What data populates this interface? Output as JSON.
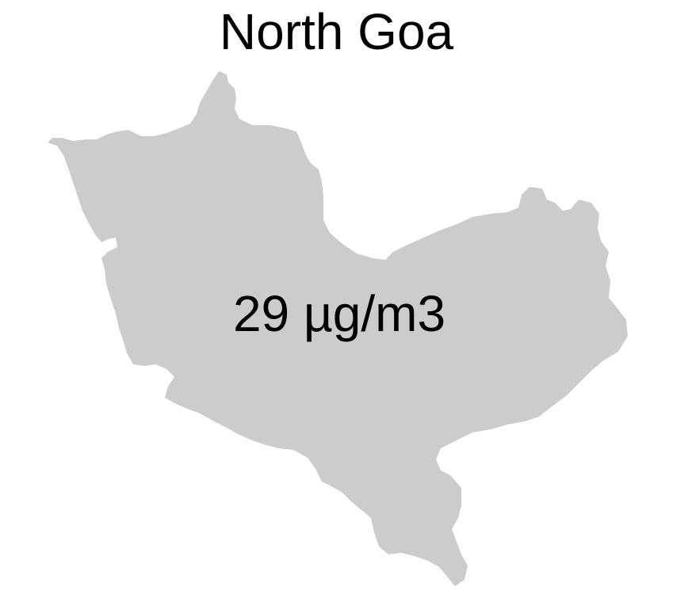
{
  "map": {
    "title": "North Goa",
    "region_name": "North Goa",
    "value_label": "29 µg/m3",
    "value": 29,
    "unit": "µg/m3",
    "fill_color": "#cccccc",
    "background_color": "#ffffff",
    "text_color": "#000000"
  }
}
